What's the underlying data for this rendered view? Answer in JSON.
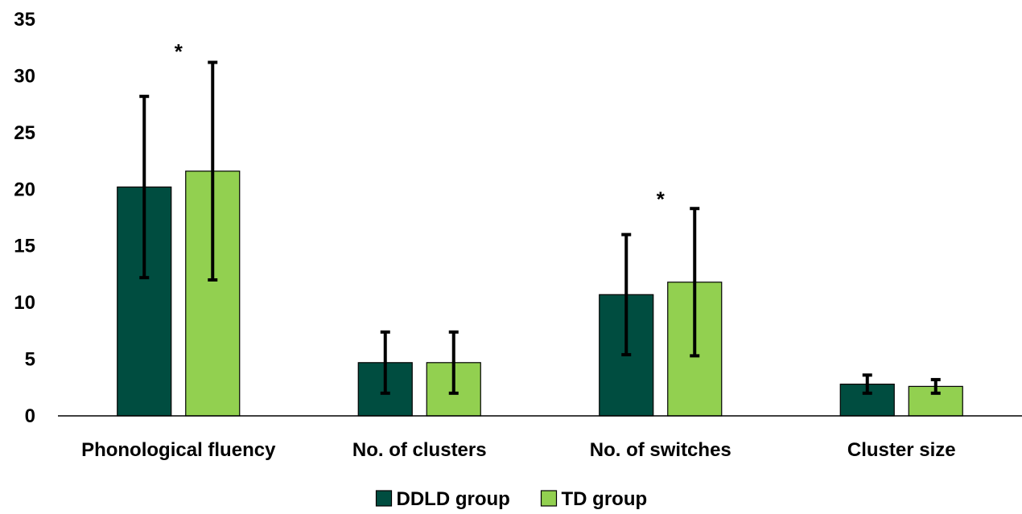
{
  "chart_data": {
    "type": "bar",
    "title": "",
    "xlabel": "",
    "ylabel": "",
    "ylim": [
      0,
      35
    ],
    "yticks": [
      0,
      5,
      10,
      15,
      20,
      25,
      30,
      35
    ],
    "grid": false,
    "legend_position": "bottom",
    "categories": [
      "Phonological fluency",
      "No. of clusters",
      "No. of switches",
      "Cluster size"
    ],
    "series": [
      {
        "name": "DDLD group",
        "color": "#004d40",
        "values": [
          20.2,
          4.7,
          10.7,
          2.8
        ],
        "error": [
          8.0,
          2.7,
          5.3,
          0.8
        ]
      },
      {
        "name": "TD group",
        "color": "#92d050",
        "values": [
          21.6,
          4.7,
          11.8,
          2.6
        ],
        "error": [
          9.6,
          2.7,
          6.5,
          0.6
        ]
      }
    ],
    "annotations": [
      {
        "category": "Phonological fluency",
        "text": "*",
        "y": 32.5
      },
      {
        "category": "No. of switches",
        "text": "*",
        "y": 19.5
      }
    ]
  }
}
